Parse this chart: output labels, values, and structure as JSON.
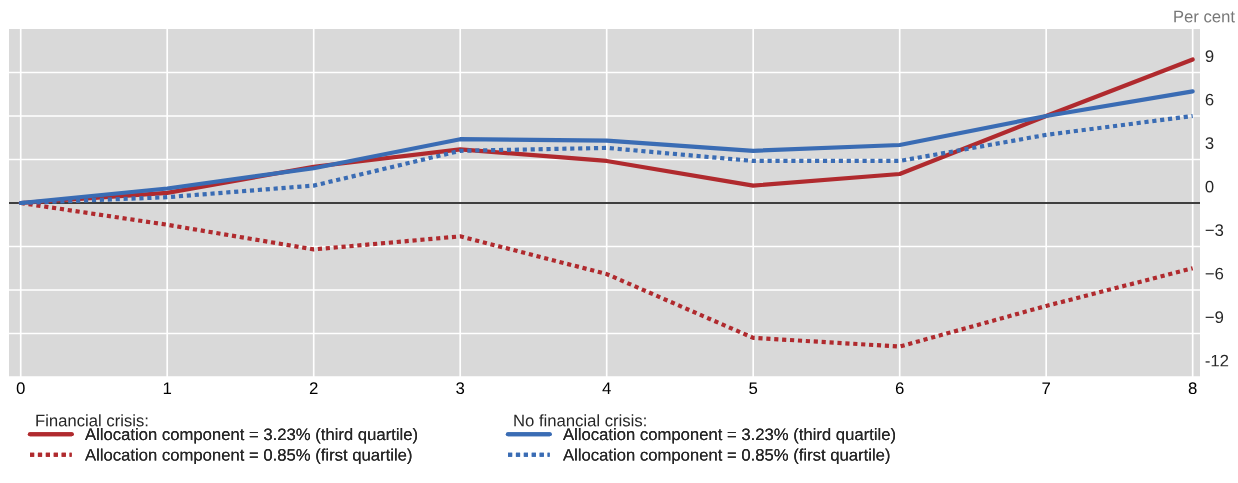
{
  "chart_data": {
    "type": "line",
    "ylabel": "Per cent",
    "x": [
      0,
      1,
      2,
      3,
      4,
      5,
      6,
      7,
      8
    ],
    "xlim": [
      -0.08,
      8.05
    ],
    "xticks": [
      0,
      1,
      2,
      3,
      4,
      5,
      6,
      7,
      8
    ],
    "ylim": [
      -12,
      12
    ],
    "yticks": [
      -12,
      {
        "value": -9,
        "label": "−9"
      },
      {
        "value": -6,
        "label": "−6"
      },
      {
        "value": -3,
        "label": "−3"
      },
      0,
      3,
      6,
      9
    ],
    "grid": true,
    "legend": "bottom",
    "tick_labels": "xy",
    "annotations": [
      "Financial crisis:",
      "No financial crisis:"
    ],
    "series": [
      {
        "name": "Allocation component = 3.23% (third quartile)",
        "color": "#b02a2e",
        "line_style": "solid",
        "values": [
          0,
          0.7,
          2.5,
          3.7,
          2.9,
          1.2,
          2.0,
          6.0,
          9.9
        ]
      },
      {
        "name": "Allocation component = 0.85% (first quartile)",
        "color": "#b02a2e",
        "line_style": "dotted",
        "values": [
          0,
          -1.5,
          -3.2,
          -2.3,
          -4.9,
          -9.3,
          -9.9,
          -7.1,
          -4.5
        ]
      },
      {
        "name": "Allocation component = 3.23% (third quartile)",
        "color": "#3a6cb4",
        "line_style": "solid",
        "values": [
          0,
          1.0,
          2.4,
          4.4,
          4.3,
          3.6,
          4.0,
          6.0,
          7.7
        ]
      },
      {
        "name": "Allocation component = 0.85% (first quartile)",
        "color": "#3a6cb4",
        "line_style": "dotted",
        "values": [
          0,
          0.4,
          1.2,
          3.6,
          3.8,
          2.9,
          2.9,
          4.7,
          6.0
        ]
      }
    ]
  }
}
